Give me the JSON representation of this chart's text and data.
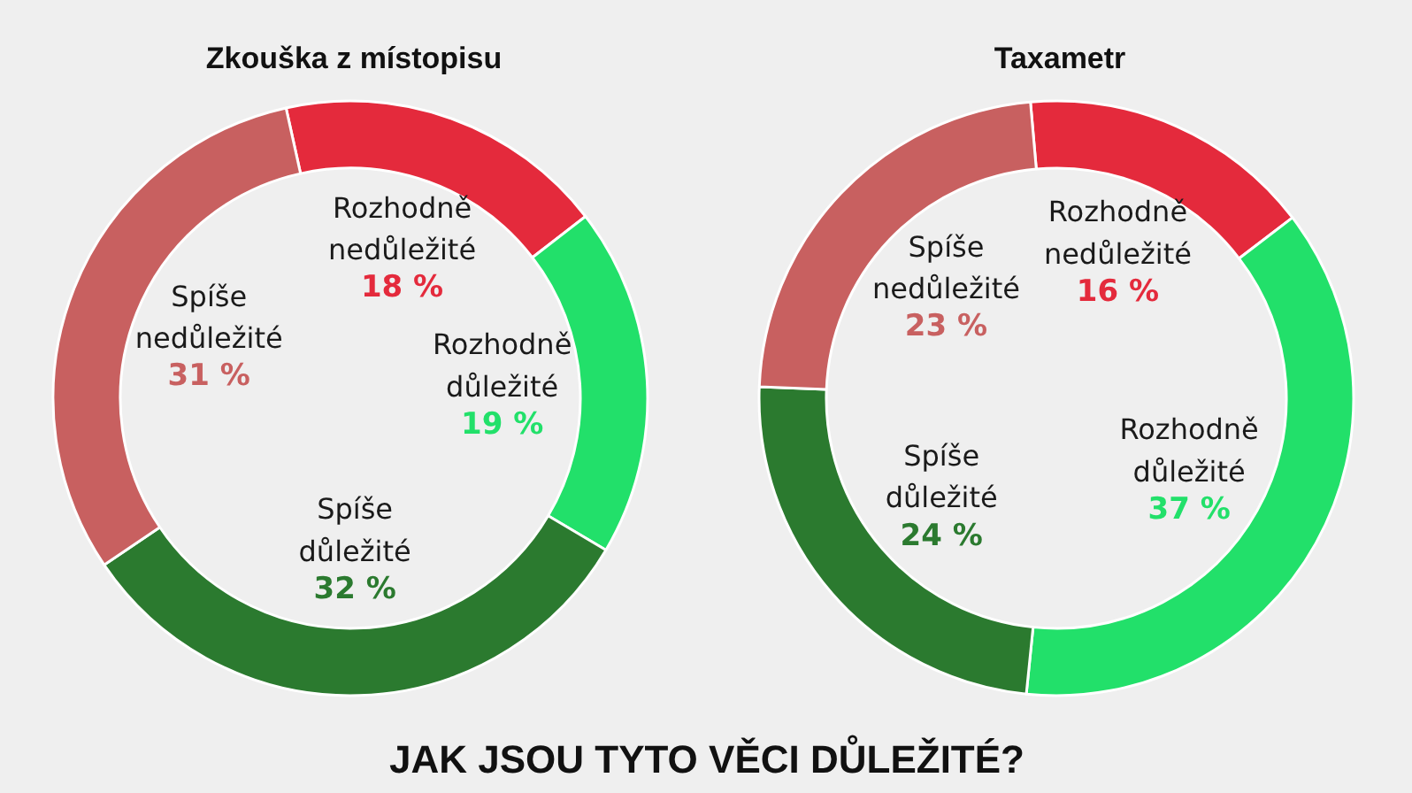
{
  "chart_data": [
    {
      "type": "donut",
      "title": "Zkouška z místopisu",
      "categories": [
        "Rozhodně nedůležité",
        "Rozhodně důležité",
        "Spíše důležité",
        "Spíše nedůležité"
      ],
      "values": [
        18,
        19,
        32,
        31
      ],
      "colors": [
        "#e42a3c",
        "#22e06a",
        "#2b7a2f",
        "#c86060"
      ],
      "value_labels": [
        "18 %",
        "19 %",
        "32 %",
        "31 %"
      ]
    },
    {
      "type": "donut",
      "title": "Taxametr",
      "categories": [
        "Rozhodně nedůležité",
        "Rozhodně důležité",
        "Spíše důležité",
        "Spíše nedůležité"
      ],
      "values": [
        16,
        37,
        24,
        23
      ],
      "colors": [
        "#e42a3c",
        "#22e06a",
        "#2b7a2f",
        "#c86060"
      ],
      "value_labels": [
        "16 %",
        "37 %",
        "24 %",
        "23 %"
      ]
    },
    {
      "type": "other",
      "title": "JAK JSOU TYTO VĚCI DŮLEŽITÉ?"
    }
  ]
}
